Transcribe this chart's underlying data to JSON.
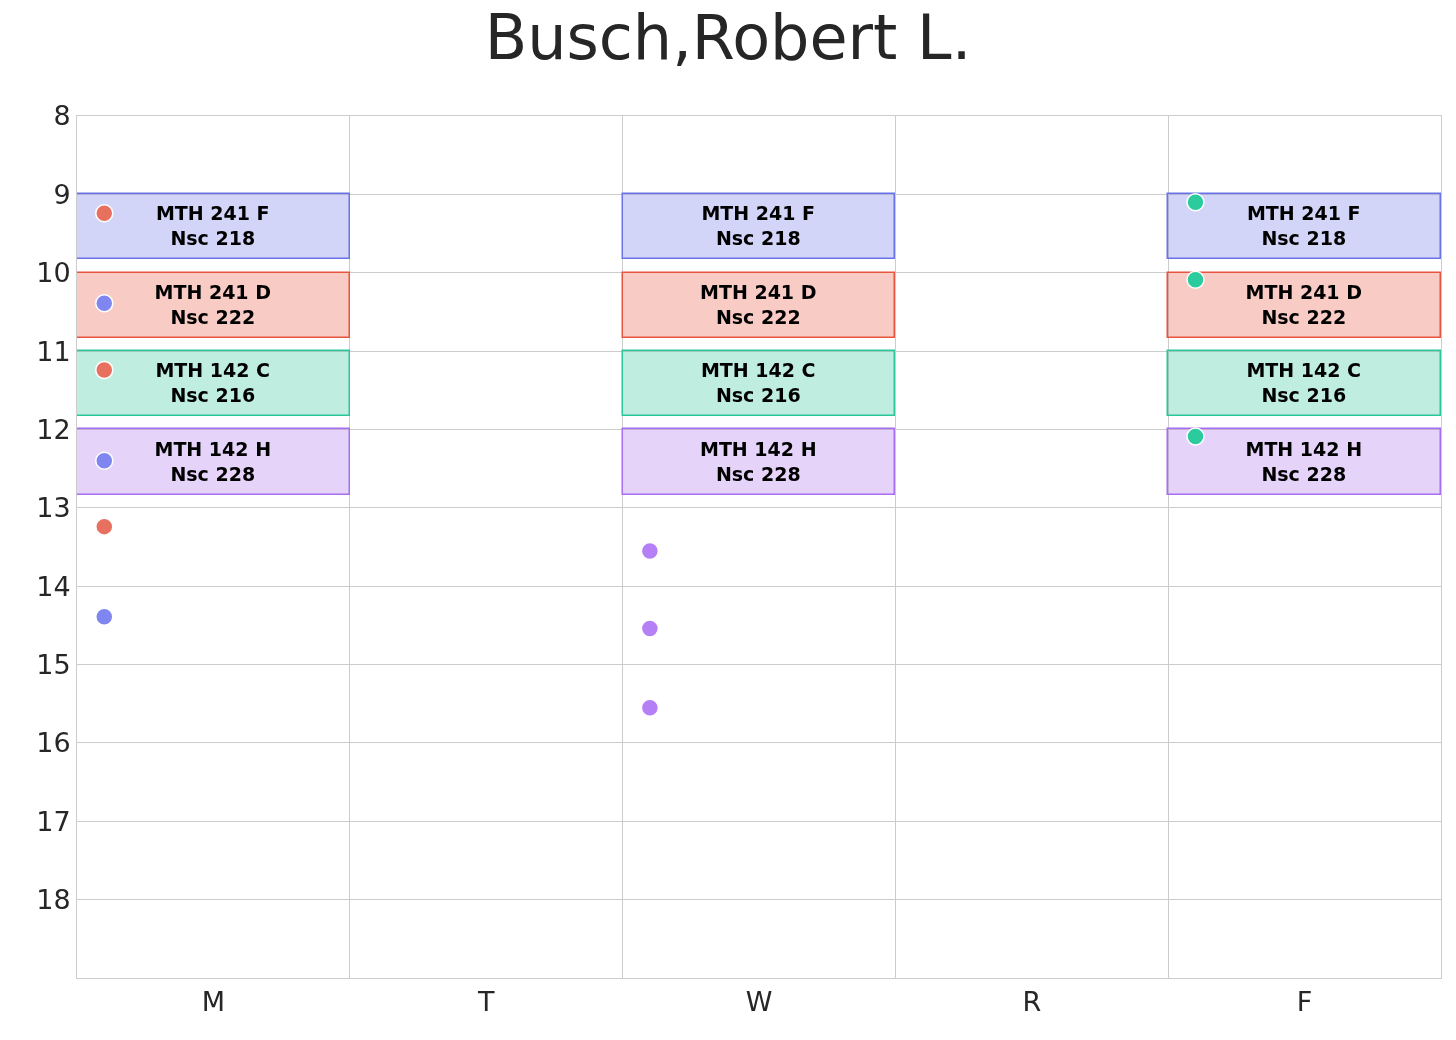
{
  "chart_data": {
    "type": "bar",
    "title": "Busch,Robert L.",
    "categories": [
      "M",
      "T",
      "W",
      "R",
      "F"
    ],
    "ylim": [
      19,
      8
    ],
    "yticks": [
      8,
      9,
      10,
      11,
      12,
      13,
      14,
      15,
      16,
      17,
      18
    ],
    "grid": true,
    "marker": "circle",
    "series": [
      {
        "color": "#6b73e8",
        "base": [
          9,
          null,
          9,
          null,
          9
        ],
        "values": [
          0.83,
          null,
          0.83,
          null,
          0.83
        ],
        "value_labels": [
          "MTH 241 F\nNsc 218",
          null,
          "MTH 241 F\nNsc 218",
          null,
          "MTH 241 F\nNsc 218"
        ]
      },
      {
        "color": "#e8553f",
        "base": [
          10,
          null,
          10,
          null,
          10
        ],
        "values": [
          0.83,
          null,
          0.83,
          null,
          0.83
        ],
        "value_labels": [
          "MTH 241 D\nNsc 222",
          null,
          "MTH 241 D\nNsc 222",
          null,
          "MTH 241 D\nNsc 222"
        ]
      },
      {
        "color": "#2bc79a",
        "base": [
          11,
          null,
          11,
          null,
          11
        ],
        "values": [
          0.83,
          null,
          0.83,
          null,
          0.83
        ],
        "value_labels": [
          "MTH 142 C\nNsc 216",
          null,
          "MTH 142 C\nNsc 216",
          null,
          "MTH 142 C\nNsc 216"
        ]
      },
      {
        "color": "#a86ef0",
        "base": [
          12,
          null,
          12,
          null,
          12
        ],
        "values": [
          0.83,
          null,
          0.83,
          null,
          0.83
        ],
        "value_labels": [
          "MTH 142 H\nNsc 228",
          null,
          "MTH 142 H\nNsc 228",
          null,
          "MTH 142 H\nNsc 228"
        ]
      },
      {
        "type": "scatter",
        "x": [
          "M",
          "M",
          "M",
          "M",
          "M",
          "M"
        ],
        "values": [
          9.24,
          10.39,
          11.24,
          12.4,
          13.24,
          14.39
        ],
        "colors": [
          "#e8705f",
          "#7f86f0",
          "#e8705f",
          "#7f86f0",
          "#e8705f",
          "#7f86f0"
        ]
      },
      {
        "type": "scatter",
        "x": [
          "W",
          "W",
          "W"
        ],
        "values": [
          13.55,
          14.54,
          15.55
        ],
        "colors": [
          "#b57ff5",
          "#b57ff5",
          "#b57ff5"
        ]
      },
      {
        "type": "scatter",
        "x": [
          "F",
          "F",
          "F"
        ],
        "values": [
          9.1,
          10.09,
          12.09
        ],
        "colors": [
          "#2bcb9e",
          "#2bcb9e",
          "#2bcb9e"
        ]
      }
    ]
  }
}
